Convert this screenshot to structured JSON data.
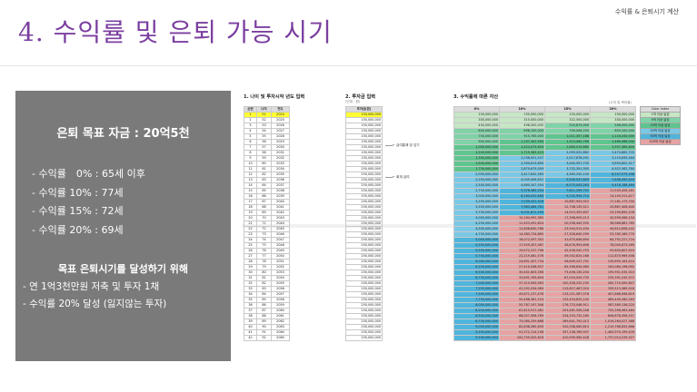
{
  "header": {
    "top_label": "수익률 & 은퇴시기 계산",
    "title": "4. 수익률 및 은퇴 가능 시기"
  },
  "panel": {
    "goal": "은퇴 목표 자금 : 20억5천",
    "ages": [
      "- 수익률　0% : 65세 이후",
      "- 수익률 10% : 77세",
      "- 수익률 15% : 72세",
      "- 수익률 20% : 69세"
    ],
    "plan_title": "목표 은퇴시기를 달성하기 위해",
    "plan": [
      "- 연 1억3천만원 저축 및 투자 1채",
      "- 수익률 20% 달성 (잃지않는 투자)"
    ]
  },
  "sheet": {
    "section1_title": "1. 나이 및 투자시작 년도 입력",
    "section2_title": "2. 투자금 입력",
    "section2_sub": "(단위 : 원)",
    "section3_title": "3. 수익률에 따른 자산",
    "section3_sub": "(수익 및 복리율)",
    "ann_upper": "← 급여통해 빚 갚기",
    "ann_lower": "← 회계 급여",
    "colors": {
      "accent": "#7b3fa0",
      "panel": "#7a7a7a",
      "col0": "#c6e6c6",
      "col10_a": "#7fd3a7",
      "col10_b": "#79c8e6",
      "col10_c": "#e6a3a3",
      "col15_a": "#8fd0e8",
      "col20_a": "#a4d6ee",
      "yellow": "#ffff33",
      "highlight": "#d4ebd4"
    },
    "left_headers": [
      "순번",
      "나이",
      "연도"
    ],
    "invest_header": "투자금(원)",
    "right_headers": [
      "0%",
      "10%",
      "15%",
      "20%"
    ],
    "rows": [
      [
        "1",
        "51",
        "2024",
        "150,000,000",
        "150,000,000",
        "150,000,000",
        "150,000,000",
        "150,000,000"
      ],
      [
        "2",
        "52",
        "2025",
        "150,000,000",
        "300,000,000",
        "315,000,000",
        "322,500,000",
        "330,000,000"
      ],
      [
        "3",
        "53",
        "2026",
        "150,000,000",
        "450,000,000",
        "496,500,000",
        "520,875,000",
        "546,000,000"
      ],
      [
        "4",
        "54",
        "2027",
        "150,000,000",
        "600,000,000",
        "696,150,000",
        "749,006,250",
        "805,200,000"
      ],
      [
        "5",
        "55",
        "2028",
        "150,000,000",
        "750,000,000",
        "915,765,000",
        "1,011,357,188",
        "1,116,240,000"
      ],
      [
        "6",
        "56",
        "2029",
        "150,000,000",
        "900,000,000",
        "1,157,341,500",
        "1,313,060,766",
        "1,489,488,000"
      ],
      [
        "7",
        "57",
        "2030",
        "150,000,000",
        "1,050,000,000",
        "1,423,075,650",
        "1,660,019,880",
        "1,937,385,600"
      ],
      [
        "8",
        "58",
        "2031",
        "150,000,000",
        "1,200,000,000",
        "1,715,383,215",
        "2,059,022,862",
        "2,474,862,720"
      ],
      [
        "9",
        "59",
        "2032",
        "150,000,000",
        "1,350,000,000",
        "2,036,921,537",
        "2,517,876,291",
        "3,119,835,264"
      ],
      [
        "10",
        "60",
        "2033",
        "150,000,000",
        "1,500,000,000",
        "2,390,613,690",
        "3,045,557,735",
        "3,893,802,317"
      ],
      [
        "11",
        "61",
        "2034",
        "250,000,000",
        "1,750,000,000",
        "2,879,675,059",
        "3,752,391,395",
        "4,922,562,780"
      ],
      [
        "12",
        "62",
        "2035",
        "250,000,000",
        "2,000,000,000",
        "3,417,642,565",
        "4,565,250,104",
        "6,157,075,336"
      ],
      [
        "13",
        "63",
        "2036",
        "250,000,000",
        "2,250,000,000",
        "4,009,406,822",
        "5,500,037,620",
        "7,638,490,403"
      ],
      [
        "14",
        "64",
        "2037",
        "250,000,000",
        "2,500,000,000",
        "4,660,347,504",
        "6,575,043,263",
        "9,416,188,484"
      ],
      [
        "15",
        "65",
        "2038",
        "250,000,000",
        "2,750,000,000",
        "5,376,382,254",
        "7,811,299,752",
        "11,549,426,181"
      ],
      [
        "16",
        "66",
        "2039",
        "250,000,000",
        "3,000,000,000",
        "6,164,020,480",
        "9,232,994,715",
        "14,109,311,417"
      ],
      [
        "17",
        "67",
        "2040",
        "250,000,000",
        "3,250,000,000",
        "7,030,422,528",
        "10,867,943,922",
        "17,181,173,700"
      ],
      [
        "18",
        "68",
        "2041",
        "250,000,000",
        "3,500,000,000",
        "7,983,464,781",
        "12,748,135,511",
        "20,867,408,440"
      ],
      [
        "19",
        "69",
        "2042",
        "250,000,000",
        "3,750,000,000",
        "9,031,811,259",
        "14,910,355,837",
        "25,290,890,128"
      ],
      [
        "20",
        "70",
        "2043",
        "250,000,000",
        "4,000,000,000",
        "10,184,992,385",
        "17,396,909,213",
        "30,599,068,154"
      ],
      [
        "21",
        "71",
        "2044",
        "250,000,000",
        "4,250,000,000",
        "11,453,491,624",
        "20,256,445,595",
        "36,968,881,785"
      ],
      [
        "22",
        "72",
        "2045",
        "250,000,000",
        "4,500,000,000",
        "12,848,840,786",
        "23,544,912,434",
        "44,612,658,142"
      ],
      [
        "23",
        "73",
        "2046",
        "250,000,000",
        "4,750,000,000",
        "14,383,724,865",
        "27,326,649,299",
        "53,785,189,770"
      ],
      [
        "24",
        "74",
        "2047",
        "250,000,000",
        "5,000,000,000",
        "16,072,097,352",
        "31,675,646,694",
        "64,792,227,724"
      ],
      [
        "25",
        "75",
        "2048",
        "250,000,000",
        "5,250,000,000",
        "17,929,307,087",
        "36,676,993,698",
        "78,000,673,269"
      ],
      [
        "26",
        "76",
        "2049",
        "250,000,000",
        "5,500,000,000",
        "19,972,237,796",
        "42,428,542,753",
        "93,850,807,923"
      ],
      [
        "27",
        "77",
        "2050",
        "250,000,000",
        "5,750,000,000",
        "22,219,461,576",
        "49,042,824,166",
        "112,870,969,508"
      ],
      [
        "28",
        "78",
        "2051",
        "250,000,000",
        "6,000,000,000",
        "24,691,407,734",
        "56,649,247,791",
        "135,695,163,410"
      ],
      [
        "29",
        "79",
        "2052",
        "250,000,000",
        "6,250,000,000",
        "27,410,548,507",
        "65,396,634,960",
        "163,084,196,092"
      ],
      [
        "30",
        "80",
        "2053",
        "250,000,000",
        "6,500,000,000",
        "30,401,603,358",
        "75,456,130,204",
        "195,951,035,310"
      ],
      [
        "31",
        "81",
        "2054",
        "250,000,000",
        "6,750,000,000",
        "33,691,763,694",
        "87,024,549,735",
        "235,391,242,372"
      ],
      [
        "32",
        "82",
        "2055",
        "250,000,000",
        "7,000,000,000",
        "37,310,940,063",
        "100,328,232,195",
        "282,719,490,847"
      ],
      [
        "33",
        "83",
        "2056",
        "250,000,000",
        "7,250,000,000",
        "41,292,034,069",
        "115,627,467,024",
        "339,513,389,016"
      ],
      [
        "34",
        "84",
        "2057",
        "250,000,000",
        "7,500,000,000",
        "45,671,237,476",
        "133,221,587,078",
        "407,666,066,819"
      ],
      [
        "35",
        "85",
        "2058",
        "250,000,000",
        "7,750,000,000",
        "50,488,361,224",
        "153,454,825,140",
        "489,449,280,183"
      ],
      [
        "36",
        "86",
        "2059",
        "250,000,000",
        "8,000,000,000",
        "55,787,197,346",
        "176,723,048,911",
        "587,589,136,220"
      ],
      [
        "37",
        "87",
        "2060",
        "250,000,000",
        "8,250,000,000",
        "61,615,917,081",
        "203,481,506,248",
        "705,356,963,464"
      ],
      [
        "38",
        "88",
        "2061",
        "250,000,000",
        "8,500,000,000",
        "68,027,508,789",
        "234,253,732,185",
        "846,678,356,157"
      ],
      [
        "39",
        "89",
        "2062",
        "250,000,000",
        "8,750,000,000",
        "75,080,259,668",
        "269,641,792,013",
        "1,016,264,027,388"
      ],
      [
        "40",
        "90",
        "2063",
        "250,000,000",
        "9,000,000,000",
        "82,838,285,635",
        "310,338,060,815",
        "1,219,766,832,866"
      ],
      [
        "41",
        "91",
        "2064",
        "250,000,000",
        "9,250,000,000",
        "91,372,114,198",
        "357,138,769,937",
        "1,463,970,199,439"
      ],
      [
        "42",
        "92",
        "2065",
        "250,000,000",
        "9,500,000,000",
        "100,759,325,618",
        "410,959,585,428",
        "1,757,014,239,327"
      ]
    ],
    "legend": [
      {
        "label": "Color Index",
        "color": "#dcdcdc"
      },
      {
        "label": "1억 이상 달성",
        "color": "#c6e6c6"
      },
      {
        "label": "5억 이상 달성",
        "color": "#7fd3a7"
      },
      {
        "label": "10억 이상 달성",
        "color": "#5fc58f"
      },
      {
        "label": "20억 이상 달성",
        "color": "#79c8e6"
      },
      {
        "label": "50억 이상 달성",
        "color": "#4fb5dc"
      },
      {
        "label": "100억 이상 달성",
        "color": "#e6a3a3"
      }
    ]
  }
}
